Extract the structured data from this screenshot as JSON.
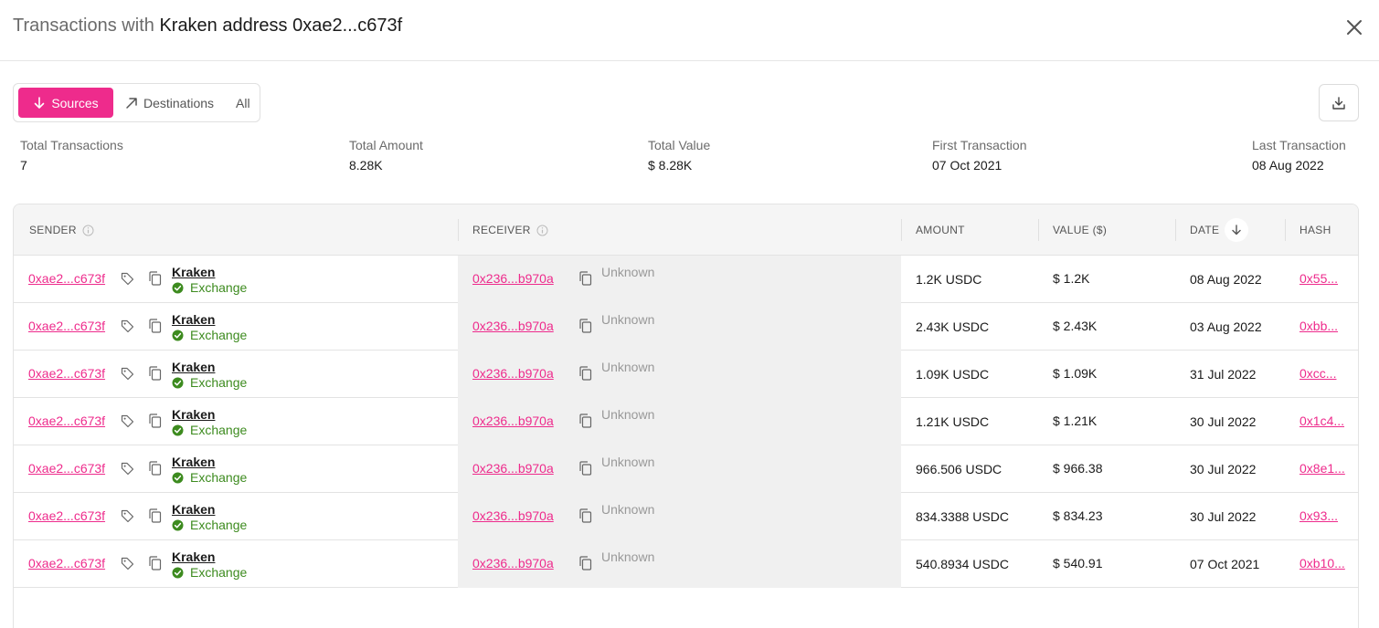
{
  "header": {
    "title_prefix": "Transactions with",
    "title_entity": "Kraken address 0xae2...c673f"
  },
  "tabs": {
    "sources": "Sources",
    "destinations": "Destinations",
    "all": "All"
  },
  "stats": {
    "total_transactions": {
      "label": "Total Transactions",
      "value": "7"
    },
    "total_amount": {
      "label": "Total Amount",
      "value": "8.28K"
    },
    "total_value": {
      "label": "Total Value",
      "value": "$ 8.28K"
    },
    "first_transaction": {
      "label": "First Transaction",
      "value": "07 Oct 2021"
    },
    "last_transaction": {
      "label": "Last Transaction",
      "value": "08 Aug 2022"
    }
  },
  "table": {
    "columns": {
      "sender": "SENDER",
      "receiver": "RECEIVER",
      "amount": "AMOUNT",
      "value": "VALUE ($)",
      "date": "DATE",
      "hash": "HASH"
    },
    "rows": [
      {
        "sender": "0xae2...c673f",
        "entity": "Kraken",
        "entity_type": "Exchange",
        "receiver": "0x236...b970a",
        "receiver_label": "Unknown",
        "amount": "1.2K USDC",
        "value": "$ 1.2K",
        "date": "08 Aug 2022",
        "hash": "0x55..."
      },
      {
        "sender": "0xae2...c673f",
        "entity": "Kraken",
        "entity_type": "Exchange",
        "receiver": "0x236...b970a",
        "receiver_label": "Unknown",
        "amount": "2.43K USDC",
        "value": "$ 2.43K",
        "date": "03 Aug 2022",
        "hash": "0xbb..."
      },
      {
        "sender": "0xae2...c673f",
        "entity": "Kraken",
        "entity_type": "Exchange",
        "receiver": "0x236...b970a",
        "receiver_label": "Unknown",
        "amount": "1.09K USDC",
        "value": "$ 1.09K",
        "date": "31 Jul 2022",
        "hash": "0xcc..."
      },
      {
        "sender": "0xae2...c673f",
        "entity": "Kraken",
        "entity_type": "Exchange",
        "receiver": "0x236...b970a",
        "receiver_label": "Unknown",
        "amount": "1.21K USDC",
        "value": "$ 1.21K",
        "date": "30 Jul 2022",
        "hash": "0x1c4..."
      },
      {
        "sender": "0xae2...c673f",
        "entity": "Kraken",
        "entity_type": "Exchange",
        "receiver": "0x236...b970a",
        "receiver_label": "Unknown",
        "amount": "966.506 USDC",
        "value": "$ 966.38",
        "date": "30 Jul 2022",
        "hash": "0x8e1..."
      },
      {
        "sender": "0xae2...c673f",
        "entity": "Kraken",
        "entity_type": "Exchange",
        "receiver": "0x236...b970a",
        "receiver_label": "Unknown",
        "amount": "834.3388 USDC",
        "value": "$ 834.23",
        "date": "30 Jul 2022",
        "hash": "0x93..."
      },
      {
        "sender": "0xae2...c673f",
        "entity": "Kraken",
        "entity_type": "Exchange",
        "receiver": "0x236...b970a",
        "receiver_label": "Unknown",
        "amount": "540.8934 USDC",
        "value": "$ 540.91",
        "date": "07 Oct 2021",
        "hash": "0xb10..."
      }
    ]
  },
  "colors": {
    "accent": "#ee2b8c",
    "exchange_green": "#3d8b1f",
    "receiver_bg": "#f0f0f0"
  },
  "icons": [
    "close-icon",
    "arrow-down-icon",
    "arrow-up-right-icon",
    "download-icon",
    "info-icon",
    "sort-arrow-down-icon",
    "tag-icon",
    "copy-icon",
    "verified-check-icon"
  ]
}
